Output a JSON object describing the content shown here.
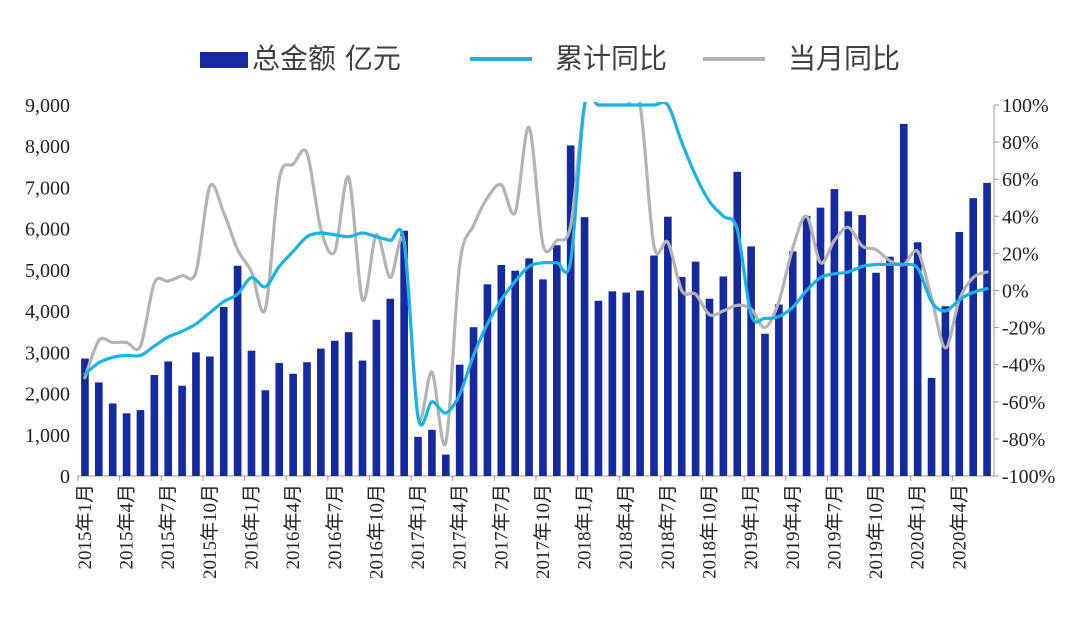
{
  "legend": {
    "bar_label": "总金额   亿元",
    "line1_label": "累计同比",
    "line2_label": "当月同比"
  },
  "colors": {
    "bar": "#1729a0",
    "cumulative": "#19b3e6",
    "monthly": "#b4b4b4"
  },
  "chart_data": {
    "type": "bar",
    "title": "",
    "xlabel": "",
    "ylabel": "",
    "ylim": [
      0,
      9000
    ],
    "y2lim": [
      -1.0,
      1.0
    ],
    "y_ticks": [
      "9,000",
      "8,000",
      "7,000",
      "6,000",
      "5,000",
      "4,000",
      "3,000",
      "2,000",
      "1,000",
      "0"
    ],
    "y2_ticks": [
      "100%",
      "80%",
      "60%",
      "40%",
      "20%",
      "0%",
      "-20%",
      "-40%",
      "-60%",
      "-80%",
      "-100%"
    ],
    "x_tick_labels": [
      "2015年1月",
      "2015年4月",
      "2015年7月",
      "2015年10月",
      "2016年1月",
      "2016年4月",
      "2016年7月",
      "2016年10月",
      "2017年1月",
      "2017年4月",
      "2017年7月",
      "2017年10月",
      "2018年1月",
      "2018年4月",
      "2018年7月",
      "2018年10月",
      "2019年1月",
      "2019年4月",
      "2019年7月",
      "2019年10月",
      "2020年1月",
      "2020年4月"
    ],
    "categories": [
      "2015-01",
      "2015-02",
      "2015-03",
      "2015-04",
      "2015-05",
      "2015-06",
      "2015-07",
      "2015-08",
      "2015-09",
      "2015-10",
      "2015-11",
      "2015-12",
      "2016-01",
      "2016-02",
      "2016-03",
      "2016-04",
      "2016-05",
      "2016-06",
      "2016-07",
      "2016-08",
      "2016-09",
      "2016-10",
      "2016-11",
      "2016-12",
      "2017-01",
      "2017-02",
      "2017-03",
      "2017-04",
      "2017-05",
      "2017-06",
      "2017-07",
      "2017-08",
      "2017-09",
      "2017-10",
      "2017-11",
      "2017-12",
      "2018-01",
      "2018-02",
      "2018-03",
      "2018-04",
      "2018-05",
      "2018-06",
      "2018-07",
      "2018-08",
      "2018-09",
      "2018-10",
      "2018-11",
      "2018-12",
      "2019-01",
      "2019-02",
      "2019-03",
      "2019-04",
      "2019-05",
      "2019-06",
      "2019-07",
      "2019-08",
      "2019-09",
      "2019-10",
      "2019-11",
      "2019-12",
      "2020-01",
      "2020-02",
      "2020-03",
      "2020-04",
      "2020-05",
      "2020-06"
    ],
    "series": [
      {
        "name": "总金额   亿元",
        "type": "bar",
        "axis": "left",
        "values": [
          2850,
          2270,
          1760,
          1520,
          1600,
          2450,
          2780,
          2190,
          3000,
          2900,
          4100,
          5100,
          3040,
          2080,
          2740,
          2480,
          2760,
          3090,
          3280,
          3490,
          2800,
          3790,
          4300,
          5950,
          950,
          1120,
          520,
          2700,
          3610,
          4650,
          5120,
          4980,
          5280,
          4770,
          5600,
          8020,
          6280,
          4250,
          4480,
          4450,
          4500,
          5350,
          6290,
          4830,
          5200,
          4300,
          4840,
          7380,
          5570,
          3450,
          4160,
          5450,
          6310,
          6510,
          6960,
          6420,
          6330,
          4930,
          5320,
          8540,
          5670,
          2380,
          4120,
          5920,
          6740,
          7110
        ]
      },
      {
        "name": "累计同比",
        "type": "line",
        "axis": "right",
        "values": [
          -0.45,
          -0.39,
          -0.36,
          -0.35,
          -0.35,
          -0.3,
          -0.25,
          -0.22,
          -0.18,
          -0.12,
          -0.06,
          -0.02,
          0.07,
          0.02,
          0.13,
          0.21,
          0.29,
          0.31,
          0.3,
          0.29,
          0.31,
          0.29,
          0.27,
          0.26,
          -0.68,
          -0.6,
          -0.66,
          -0.56,
          -0.35,
          -0.18,
          -0.05,
          0.05,
          0.13,
          0.15,
          0.15,
          0.16,
          1.0,
          1.0,
          1.0,
          1.0,
          1.0,
          1.0,
          1.0,
          0.8,
          0.62,
          0.48,
          0.4,
          0.33,
          -0.13,
          -0.15,
          -0.14,
          -0.09,
          0.0,
          0.07,
          0.09,
          0.1,
          0.13,
          0.14,
          0.14,
          0.14,
          0.12,
          -0.06,
          -0.11,
          -0.05,
          -0.01,
          0.01
        ]
      },
      {
        "name": "当月同比",
        "type": "line",
        "axis": "right",
        "values": [
          -0.47,
          -0.27,
          -0.28,
          -0.28,
          -0.3,
          0.04,
          0.05,
          0.08,
          0.1,
          0.56,
          0.42,
          0.22,
          0.1,
          -0.1,
          0.6,
          0.68,
          0.74,
          0.33,
          0.21,
          0.61,
          -0.05,
          0.3,
          0.07,
          0.26,
          -0.68,
          -0.44,
          -0.82,
          0.14,
          0.35,
          0.5,
          0.57,
          0.42,
          0.88,
          0.25,
          0.27,
          0.35,
          1.0,
          1.0,
          1.0,
          1.0,
          1.0,
          0.24,
          0.26,
          0.0,
          -0.02,
          -0.13,
          -0.11,
          -0.08,
          -0.1,
          -0.2,
          -0.06,
          0.23,
          0.4,
          0.15,
          0.27,
          0.34,
          0.24,
          0.22,
          0.16,
          0.14,
          0.21,
          -0.04,
          -0.31,
          -0.05,
          0.07,
          0.1
        ]
      }
    ],
    "legend_position": "top",
    "grid": false
  }
}
